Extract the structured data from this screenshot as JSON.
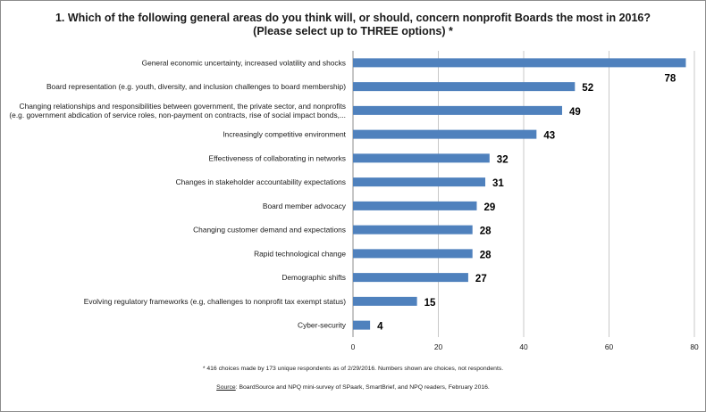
{
  "chart_data": {
    "type": "bar",
    "orientation": "horizontal",
    "title": "1. Which of the following general areas do you think will, or should, concern nonprofit Boards the most in 2016?",
    "subtitle": "(Please select up to THREE options) *",
    "categories": [
      [
        "General economic uncertainty, increased volatility and shocks"
      ],
      [
        "Board representation (e.g. youth, diversity, and inclusion challenges to board membership)"
      ],
      [
        "Changing relationships and responsibilities between government, the private sector, and nonprofits",
        "(e.g. government abdication of service roles, non-payment on contracts, rise of social impact bonds,..."
      ],
      [
        "Increasingly competitive environment"
      ],
      [
        "Effectiveness of collaborating in networks"
      ],
      [
        "Changes in stakeholder accountability expectations"
      ],
      [
        "Board member advocacy"
      ],
      [
        "Changing customer demand and expectations"
      ],
      [
        "Rapid technological change"
      ],
      [
        "Demographic shifts"
      ],
      [
        "Evolving regulatory frameworks (e.g, challenges to nonprofit tax exempt status)"
      ],
      [
        "Cyber-security"
      ]
    ],
    "values": [
      78,
      52,
      49,
      43,
      32,
      31,
      29,
      28,
      28,
      27,
      15,
      4
    ],
    "data_labels": [
      "78",
      "52",
      "49",
      "43",
      "32",
      "31",
      "29",
      "28",
      "28",
      "27",
      "15",
      "4"
    ],
    "xlim": [
      0,
      80
    ],
    "xticks": [
      "0",
      "20",
      "40",
      "60",
      "80"
    ],
    "grid": "vertical",
    "bar_color": "#4f81bd"
  },
  "footnote": "* 416 choices made by 173 unique respondents as of 2/29/2016. Numbers shown are choices, not respondents.",
  "source_label": "Source",
  "source_text": ": BoardSource and NPQ mini-survey of SPaark, SmartBrief, and NPQ readers, February 2016."
}
